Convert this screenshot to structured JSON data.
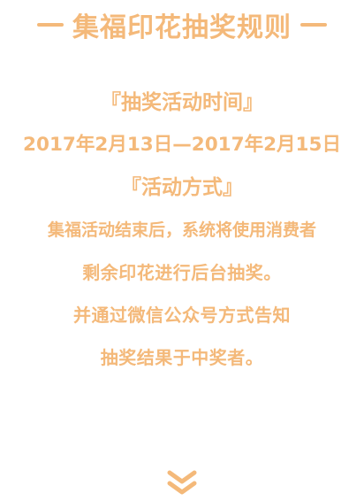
{
  "header": {
    "title": "集福印花抽奖规则"
  },
  "rules": {
    "time_heading": "『抽奖活动时间』",
    "time_range": "2017年2月13日—2017年2月15日",
    "method_heading": "『活动方式』",
    "method_lines": [
      "集福活动结束后，系统将使用消费者",
      "剩余印花进行后台抽奖。",
      "并通过微信公众号方式告知",
      "抽奖结果于中奖者。"
    ]
  },
  "colors": {
    "text": "#f4b97a",
    "background": "#ffffff"
  },
  "icons": {
    "scroll": "double-chevron-down-icon"
  }
}
